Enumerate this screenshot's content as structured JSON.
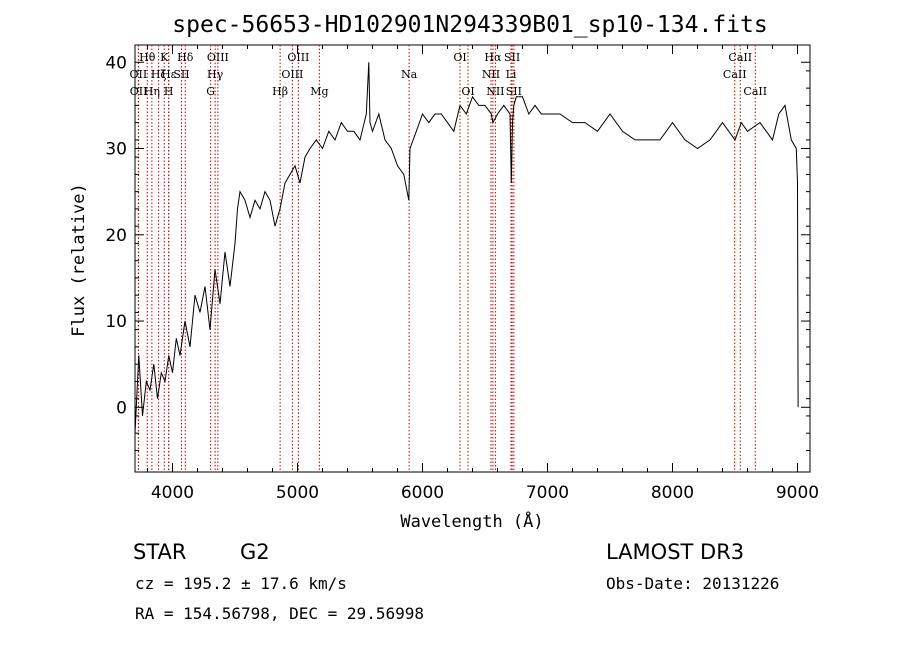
{
  "title": "spec-56653-HD102901N294339B01_sp10-134.fits",
  "chart_data": {
    "type": "line",
    "xlabel": "Wavelength (Å)",
    "ylabel": "Flux (relative)",
    "xlim": [
      3700,
      9100
    ],
    "ylim": [
      -7.5,
      42
    ],
    "xticks": [
      4000,
      5000,
      6000,
      7000,
      8000,
      9000
    ],
    "yticks": [
      0,
      10,
      20,
      30,
      40
    ],
    "grid": false,
    "series": [
      {
        "x": [
          3700,
          3730,
          3760,
          3790,
          3820,
          3850,
          3880,
          3910,
          3940,
          3970,
          4000,
          4030,
          4060,
          4100,
          4140,
          4180,
          4220,
          4260,
          4300,
          4340,
          4380,
          4420,
          4460,
          4500,
          4520,
          4540,
          4580,
          4620,
          4660,
          4700,
          4740,
          4780,
          4820,
          4860,
          4900,
          4940,
          4980,
          5020,
          5060,
          5100,
          5150,
          5200,
          5250,
          5300,
          5350,
          5400,
          5450,
          5500,
          5550,
          5570,
          5580,
          5600,
          5650,
          5700,
          5750,
          5800,
          5850,
          5890,
          5900,
          5950,
          6000,
          6050,
          6100,
          6150,
          6200,
          6250,
          6300,
          6350,
          6400,
          6450,
          6500,
          6550,
          6563,
          6600,
          6650,
          6700,
          6710,
          6720,
          6730,
          6750,
          6800,
          6850,
          6900,
          6950,
          7000,
          7100,
          7200,
          7300,
          7400,
          7500,
          7600,
          7700,
          7800,
          7900,
          8000,
          8100,
          8200,
          8300,
          8400,
          8500,
          8550,
          8600,
          8700,
          8800,
          8850,
          8900,
          8950,
          8990,
          9000,
          9005
        ],
        "y": [
          -3,
          6,
          -1,
          3,
          2,
          5,
          1,
          4,
          3,
          6,
          4,
          8,
          6,
          10,
          7,
          13,
          11,
          14,
          9,
          16,
          12,
          18,
          14,
          19,
          23,
          25,
          24,
          22,
          24,
          23,
          25,
          24,
          21,
          23,
          26,
          27,
          28,
          26,
          29,
          30,
          31,
          30,
          32,
          31,
          33,
          32,
          32,
          31,
          34,
          40,
          33,
          32,
          34,
          31,
          30,
          28,
          27,
          24,
          30,
          32,
          34,
          33,
          34,
          34,
          33,
          32,
          35,
          34,
          36,
          35,
          35,
          34,
          33,
          34,
          35,
          34,
          26,
          33,
          35,
          36,
          36,
          34,
          35,
          34,
          34,
          34,
          33,
          33,
          32,
          34,
          32,
          31,
          31,
          31,
          33,
          31,
          30,
          31,
          33,
          31,
          33,
          32,
          33,
          31,
          34,
          35,
          31,
          30,
          26,
          0
        ]
      }
    ],
    "line_markers": [
      {
        "label": "Hθ",
        "wavelength": 3798,
        "row": 0
      },
      {
        "label": "OII",
        "wavelength": 3727,
        "row": 1
      },
      {
        "label": "OII",
        "wavelength": 3729,
        "row": 2
      },
      {
        "label": "Hη",
        "wavelength": 3835,
        "row": 2
      },
      {
        "label": "Hζ",
        "wavelength": 3889,
        "row": 1
      },
      {
        "label": "K",
        "wavelength": 3934,
        "row": 0
      },
      {
        "label": "Hε",
        "wavelength": 3970,
        "row": 1
      },
      {
        "label": "H",
        "wavelength": 3969,
        "row": 2
      },
      {
        "label": "Hδ",
        "wavelength": 4102,
        "row": 0
      },
      {
        "label": "SII",
        "wavelength": 4072,
        "row": 1
      },
      {
        "label": "OIII",
        "wavelength": 4363,
        "row": 0
      },
      {
        "label": "Hγ",
        "wavelength": 4341,
        "row": 1
      },
      {
        "label": "G",
        "wavelength": 4305,
        "row": 2
      },
      {
        "label": "Hβ",
        "wavelength": 4861,
        "row": 2
      },
      {
        "label": "OIII",
        "wavelength": 5007,
        "row": 0
      },
      {
        "label": "OIII",
        "wavelength": 4959,
        "row": 1
      },
      {
        "label": "Mg",
        "wavelength": 5175,
        "row": 2
      },
      {
        "label": "Na",
        "wavelength": 5893,
        "row": 1
      },
      {
        "label": "OI",
        "wavelength": 6300,
        "row": 0
      },
      {
        "label": "OI",
        "wavelength": 6364,
        "row": 2
      },
      {
        "label": "Hα",
        "wavelength": 6563,
        "row": 0
      },
      {
        "label": "NII",
        "wavelength": 6548,
        "row": 1
      },
      {
        "label": "NII",
        "wavelength": 6583,
        "row": 2
      },
      {
        "label": "SII",
        "wavelength": 6717,
        "row": 0
      },
      {
        "label": "Li",
        "wavelength": 6708,
        "row": 1
      },
      {
        "label": "SII",
        "wavelength": 6731,
        "row": 2
      },
      {
        "label": "CaII",
        "wavelength": 8542,
        "row": 0
      },
      {
        "label": "CaII",
        "wavelength": 8498,
        "row": 1
      },
      {
        "label": "CaII",
        "wavelength": 8662,
        "row": 2
      }
    ]
  },
  "info": {
    "object_class": "STAR",
    "subclass": "G2",
    "survey": "LAMOST DR3",
    "redshift": "cz = 195.2 ± 17.6 km/s",
    "obs_date": "Obs-Date: 20131226",
    "coords": "RA = 154.56798, DEC =  29.56998"
  }
}
